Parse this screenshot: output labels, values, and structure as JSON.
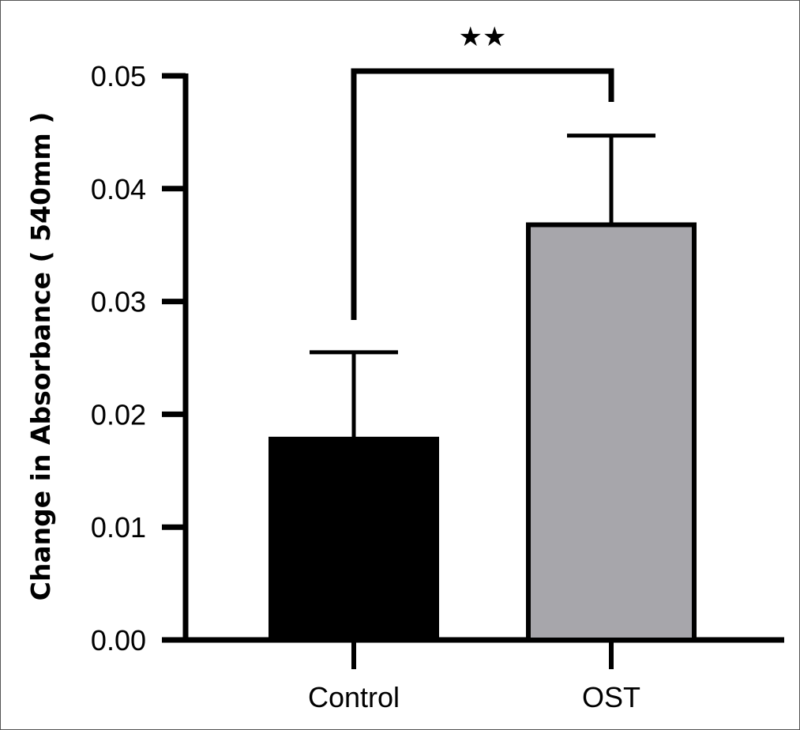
{
  "chart_data": {
    "type": "bar",
    "title": "",
    "xlabel": "",
    "ylabel": "Change in Absorbance ( 540mm )",
    "ylim": [
      0,
      0.05
    ],
    "yticks": [
      "0.00",
      "0.01",
      "0.02",
      "0.03",
      "0.04",
      "0.05"
    ],
    "categories": [
      "Control",
      "OST"
    ],
    "values": [
      0.0178,
      0.0368
    ],
    "error_upper": [
      0.0077,
      0.0079
    ],
    "colors": [
      "#000000",
      "#a7a6ab"
    ],
    "grid": false,
    "legend": "none",
    "significance": {
      "between": [
        "Control",
        "OST"
      ],
      "label": "★★"
    }
  }
}
